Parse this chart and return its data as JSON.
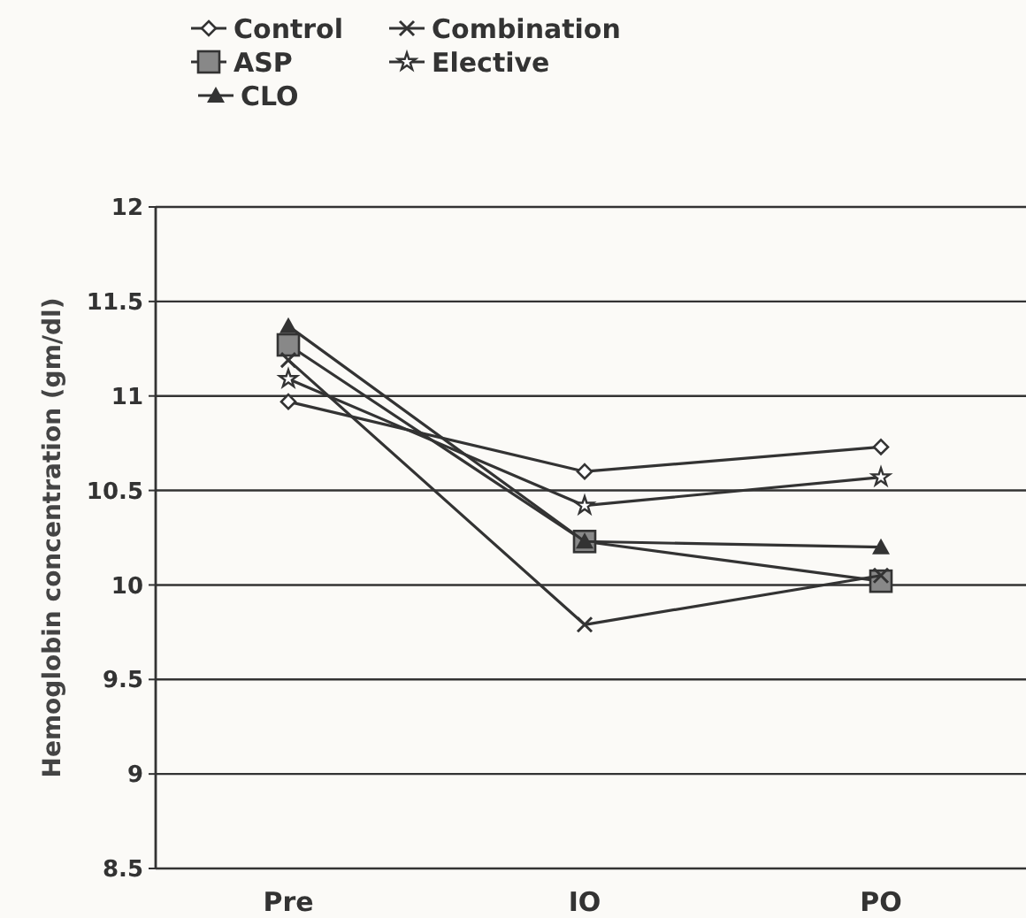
{
  "chart_data": {
    "type": "line",
    "ylabel": "Hemoglobin concentration (gm/dl)",
    "categories": [
      "Pre",
      "IO",
      "PO"
    ],
    "ylim": [
      8.5,
      12
    ],
    "yticks": [
      8.5,
      9,
      9.5,
      10,
      10.5,
      11,
      11.5,
      12
    ],
    "grid": "y",
    "legend": "top left",
    "series": [
      {
        "name": "Control",
        "color": "#333333",
        "marker": "diamond",
        "values": [
          10.97,
          10.6,
          10.73
        ]
      },
      {
        "name": "ASP",
        "color": "#333333",
        "marker": "square",
        "values": [
          11.27,
          10.23,
          10.02
        ]
      },
      {
        "name": "CLO",
        "color": "#333333",
        "marker": "triangle",
        "values": [
          11.37,
          10.23,
          10.2
        ]
      },
      {
        "name": "Combination",
        "color": "#333333",
        "marker": "cross",
        "values": [
          11.19,
          9.79,
          10.05
        ]
      },
      {
        "name": "Elective",
        "color": "#333333",
        "marker": "star",
        "values": [
          11.09,
          10.42,
          10.57
        ]
      }
    ]
  }
}
